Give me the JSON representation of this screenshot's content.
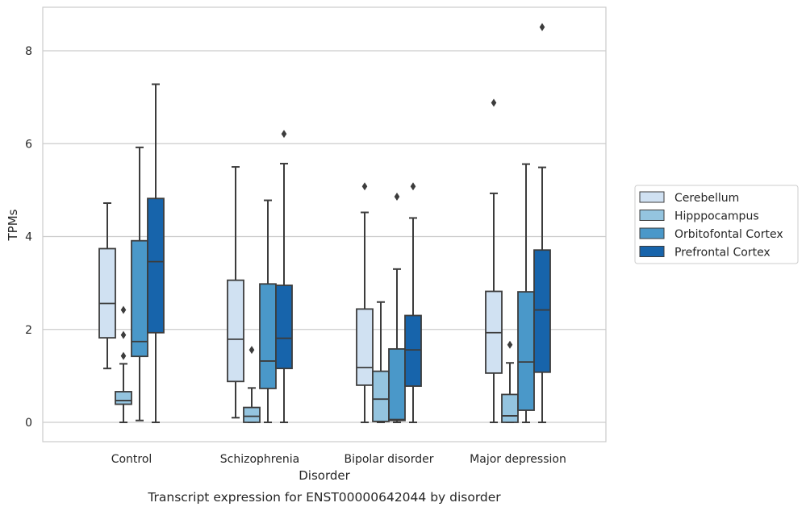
{
  "chart_data": {
    "type": "boxplot",
    "title": "Transcript expression for ENST00000642044 by disorder",
    "xlabel": "Disorder",
    "ylabel": "TPMs",
    "categories": [
      "Control",
      "Schizophrenia",
      "Bipolar disorder",
      "Major depression"
    ],
    "yticks": [
      0,
      2,
      4,
      6,
      8
    ],
    "ylim": [
      -0.42,
      8.95
    ],
    "grid": "horizontal",
    "legend": {
      "position": "right",
      "entries": [
        "Cerebellum",
        "Hipppocampus",
        "Orbitofontal Cortex",
        "Prefrontal Cortex"
      ]
    },
    "series": [
      {
        "name": "Cerebellum",
        "color": "#d0e1f2",
        "boxes": [
          {
            "whisker_low": 1.16,
            "q1": 1.82,
            "median": 2.56,
            "q3": 3.74,
            "whisker_high": 4.72,
            "outliers": []
          },
          {
            "whisker_low": 0.1,
            "q1": 0.88,
            "median": 1.79,
            "q3": 3.06,
            "whisker_high": 5.5,
            "outliers": []
          },
          {
            "whisker_low": 0.0,
            "q1": 0.8,
            "median": 1.18,
            "q3": 2.44,
            "whisker_high": 4.52,
            "outliers": [
              5.08
            ]
          },
          {
            "whisker_low": 0.0,
            "q1": 1.06,
            "median": 1.93,
            "q3": 2.82,
            "whisker_high": 4.93,
            "outliers": [
              6.88
            ]
          }
        ]
      },
      {
        "name": "Hipppocampus",
        "color": "#94c4df",
        "boxes": [
          {
            "whisker_low": 0.0,
            "q1": 0.39,
            "median": 0.47,
            "q3": 0.66,
            "whisker_high": 1.26,
            "outliers": [
              1.43,
              1.88,
              2.42
            ]
          },
          {
            "whisker_low": 0.0,
            "q1": 0.0,
            "median": 0.13,
            "q3": 0.32,
            "whisker_high": 0.74,
            "outliers": [
              1.56
            ]
          },
          {
            "whisker_low": 0.0,
            "q1": 0.02,
            "median": 0.5,
            "q3": 1.1,
            "whisker_high": 2.59,
            "outliers": []
          },
          {
            "whisker_low": 0.0,
            "q1": 0.0,
            "median": 0.14,
            "q3": 0.6,
            "whisker_high": 1.28,
            "outliers": [
              1.67
            ]
          }
        ]
      },
      {
        "name": "Orbitofontal Cortex",
        "color": "#4a98c9",
        "boxes": [
          {
            "whisker_low": 0.04,
            "q1": 1.42,
            "median": 1.74,
            "q3": 3.91,
            "whisker_high": 5.92,
            "outliers": []
          },
          {
            "whisker_low": 0.0,
            "q1": 0.73,
            "median": 1.32,
            "q3": 2.98,
            "whisker_high": 4.78,
            "outliers": []
          },
          {
            "whisker_low": 0.0,
            "q1": 0.04,
            "median": 0.06,
            "q3": 1.58,
            "whisker_high": 3.3,
            "outliers": [
              4.86
            ]
          },
          {
            "whisker_low": 0.0,
            "q1": 0.26,
            "median": 1.3,
            "q3": 2.81,
            "whisker_high": 5.56,
            "outliers": []
          }
        ]
      },
      {
        "name": "Prefrontal Cortex",
        "color": "#1764ab",
        "boxes": [
          {
            "whisker_low": 0.0,
            "q1": 1.93,
            "median": 3.46,
            "q3": 4.82,
            "whisker_high": 7.28,
            "outliers": []
          },
          {
            "whisker_low": 0.0,
            "q1": 1.16,
            "median": 1.81,
            "q3": 2.95,
            "whisker_high": 5.57,
            "outliers": [
              6.21
            ]
          },
          {
            "whisker_low": 0.0,
            "q1": 0.78,
            "median": 1.56,
            "q3": 2.3,
            "whisker_high": 4.4,
            "outliers": [
              5.08
            ]
          },
          {
            "whisker_low": 0.0,
            "q1": 1.08,
            "median": 2.42,
            "q3": 3.71,
            "whisker_high": 5.49,
            "outliers": [
              8.51
            ]
          }
        ]
      }
    ]
  }
}
